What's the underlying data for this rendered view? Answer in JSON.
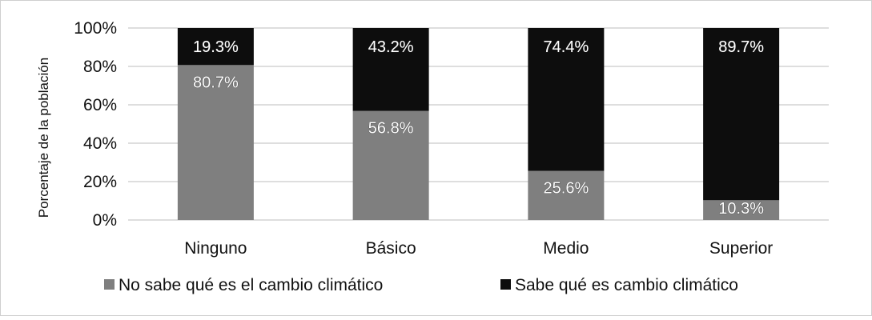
{
  "chart_data": {
    "type": "bar",
    "stacked": true,
    "categories": [
      "Ninguno",
      "Básico",
      "Medio",
      "Superior"
    ],
    "series": [
      {
        "name": "No sabe qué es el cambio climático",
        "values": [
          80.7,
          56.8,
          25.6,
          10.3
        ],
        "labels": [
          "80.7%",
          "56.8%",
          "25.6%",
          "10.3%"
        ],
        "color": "#7f7f7f"
      },
      {
        "name": "Sabe qué es cambio climático",
        "values": [
          19.3,
          43.2,
          74.4,
          89.7
        ],
        "labels": [
          "19.3%",
          "43.2%",
          "74.4%",
          "89.7%"
        ],
        "color": "#0d0d0d"
      }
    ],
    "ylabel": "Porcentaje de la población",
    "xlabel": "",
    "ylim": [
      0,
      100
    ],
    "yticks": [
      0,
      20,
      40,
      60,
      80,
      100
    ],
    "ytick_labels": [
      "0%",
      "20%",
      "40%",
      "60%",
      "80%",
      "100%"
    ],
    "grid": true,
    "legend_position": "bottom"
  }
}
